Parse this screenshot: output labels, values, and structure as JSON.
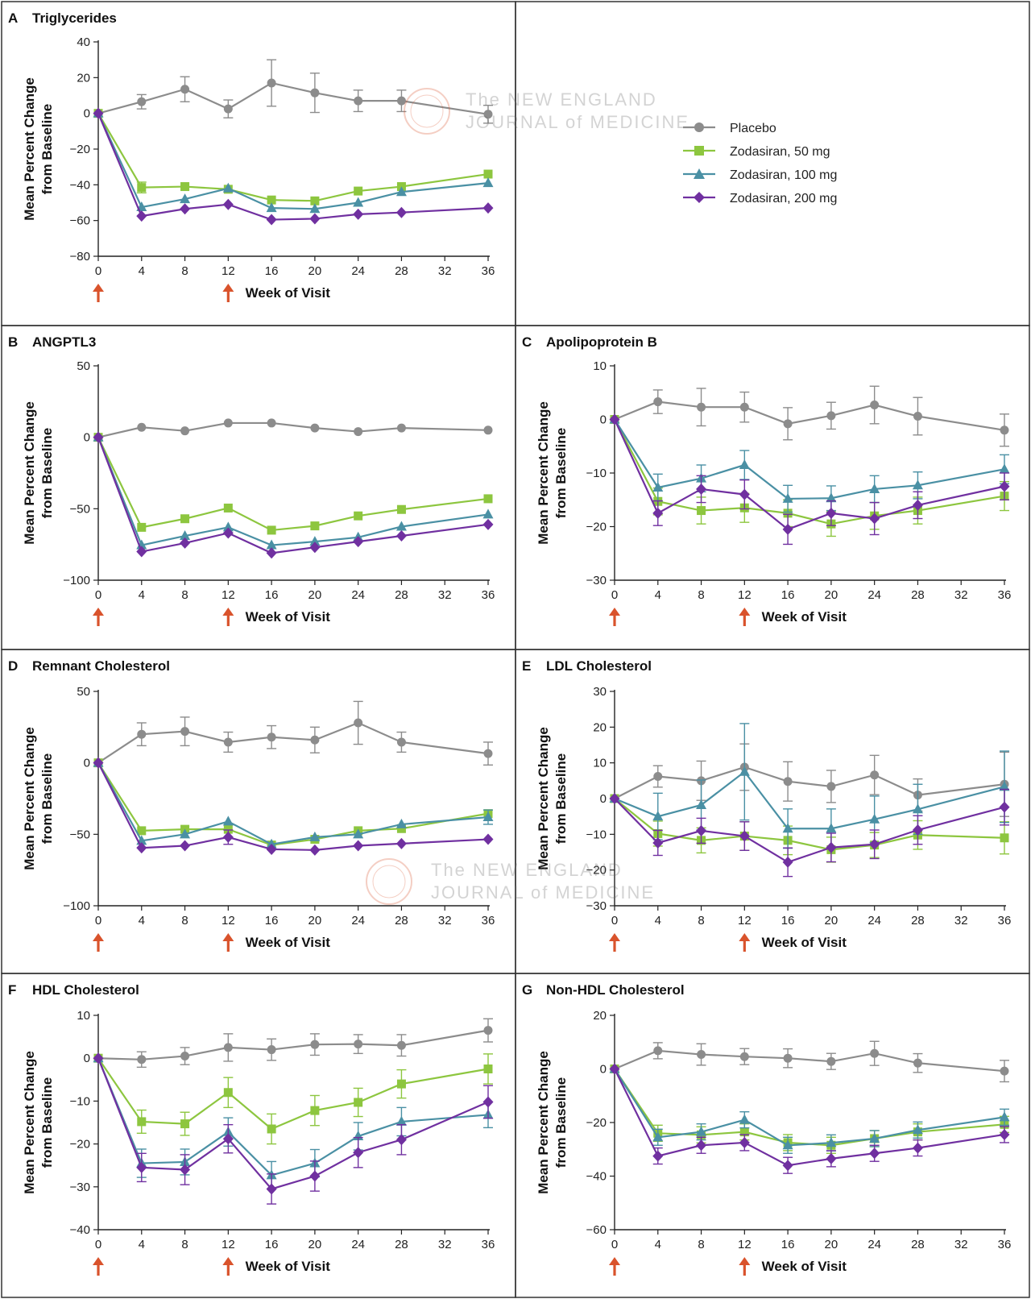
{
  "figure": {
    "x_axis_label": "Week of Visit",
    "y_axis_label_line1": "Mean Percent Change",
    "y_axis_label_line2": "from Baseline",
    "watermark": "The NEW ENGLAND JOURNAL of MEDICINE",
    "colors": {
      "placebo": "#8c8c8c",
      "z50": "#8dc63f",
      "z100": "#4a90a4",
      "z200": "#7030a0",
      "arrow": "#d9532c",
      "frame": "#333333"
    },
    "legend": {
      "placement": "top-right empty panel",
      "entries": [
        {
          "label": "Placebo",
          "marker": "circle",
          "color": "#8c8c8c"
        },
        {
          "label": "Zodasiran, 50 mg",
          "marker": "square",
          "color": "#8dc63f"
        },
        {
          "label": "Zodasiran, 100 mg",
          "marker": "triangle",
          "color": "#4a90a4"
        },
        {
          "label": "Zodasiran, 200 mg",
          "marker": "diamond",
          "color": "#7030a0"
        }
      ]
    },
    "dosing_arrows_at_weeks": [
      0,
      12
    ]
  },
  "chart_data": [
    {
      "letter": "A",
      "title": "Triglycerides",
      "type": "line",
      "x": [
        0,
        4,
        8,
        12,
        16,
        20,
        24,
        28,
        36
      ],
      "xticks": [
        0,
        4,
        8,
        12,
        16,
        20,
        24,
        28,
        32,
        36
      ],
      "ylim": [
        -80,
        40
      ],
      "yticks": [
        -80,
        -60,
        -40,
        -20,
        0,
        20,
        40
      ],
      "series": [
        {
          "name": "Placebo",
          "values": [
            0,
            6.5,
            13.5,
            2.5,
            17,
            11.5,
            7,
            7,
            -0.5
          ],
          "err": [
            0,
            4,
            7,
            5,
            13,
            11,
            6,
            6,
            5
          ]
        },
        {
          "name": "Zodasiran, 50 mg",
          "values": [
            0,
            -41.5,
            -41,
            -42.5,
            -48.5,
            -49,
            -43.5,
            -41,
            -34
          ],
          "err": [
            0,
            3,
            0,
            0,
            0,
            0,
            0,
            0,
            0
          ]
        },
        {
          "name": "Zodasiran, 100 mg",
          "values": [
            0,
            -52.5,
            -48,
            -42,
            -53,
            -53.5,
            -50,
            -44,
            -39
          ],
          "err": [
            0,
            0,
            0,
            0,
            0,
            0,
            0,
            0,
            0
          ]
        },
        {
          "name": "Zodasiran, 200 mg",
          "values": [
            0,
            -57.5,
            -53.5,
            -51,
            -59.5,
            -59,
            -56.5,
            -55.5,
            -53
          ],
          "err": [
            0,
            0,
            0,
            0,
            0,
            0,
            0,
            0,
            0
          ]
        }
      ]
    },
    {
      "letter": "B",
      "title": "ANGPTL3",
      "type": "line",
      "x": [
        0,
        4,
        8,
        12,
        16,
        20,
        24,
        28,
        36
      ],
      "xticks": [
        0,
        4,
        8,
        12,
        16,
        20,
        24,
        28,
        32,
        36
      ],
      "ylim": [
        -100,
        50
      ],
      "yticks": [
        -100,
        -50,
        0,
        50
      ],
      "series": [
        {
          "name": "Placebo",
          "values": [
            0,
            7,
            4.5,
            10,
            10,
            6.5,
            4,
            6.5,
            5
          ],
          "err": [
            0,
            0,
            0,
            0,
            0,
            0,
            0,
            0,
            0
          ]
        },
        {
          "name": "Zodasiran, 50 mg",
          "values": [
            0,
            -63,
            -57,
            -49.5,
            -65,
            -62,
            -55,
            -50.5,
            -43
          ],
          "err": [
            0,
            0,
            0,
            0,
            0,
            0,
            0,
            0,
            0
          ]
        },
        {
          "name": "Zodasiran, 100 mg",
          "values": [
            0,
            -75.5,
            -69,
            -63,
            -75.5,
            -73,
            -70,
            -62.5,
            -54
          ],
          "err": [
            0,
            0,
            0,
            0,
            0,
            0,
            0,
            0,
            0
          ]
        },
        {
          "name": "Zodasiran, 200 mg",
          "values": [
            0,
            -80,
            -74,
            -67,
            -81,
            -77,
            -73,
            -69,
            -61
          ],
          "err": [
            0,
            0,
            0,
            0,
            0,
            0,
            0,
            0,
            0
          ]
        }
      ]
    },
    {
      "letter": "C",
      "title": "Apolipoprotein B",
      "type": "line",
      "x": [
        0,
        4,
        8,
        12,
        16,
        20,
        24,
        28,
        36
      ],
      "xticks": [
        0,
        4,
        8,
        12,
        16,
        20,
        24,
        28,
        32,
        36
      ],
      "ylim": [
        -30,
        10
      ],
      "yticks": [
        -30,
        -20,
        -10,
        0,
        10
      ],
      "series": [
        {
          "name": "Placebo",
          "values": [
            0,
            3.3,
            2.3,
            2.3,
            -0.8,
            0.7,
            2.7,
            0.6,
            -2
          ],
          "err": [
            0,
            2.2,
            3.5,
            2.8,
            3,
            2.5,
            3.5,
            3.5,
            3
          ]
        },
        {
          "name": "Zodasiran, 50 mg",
          "values": [
            0,
            -15.3,
            -17,
            -16.5,
            -17.5,
            -19.5,
            -18,
            -17,
            -14.3
          ],
          "err": [
            0,
            2.5,
            2.5,
            2.7,
            2.5,
            2.3,
            2.5,
            2.5,
            2.7
          ]
        },
        {
          "name": "Zodasiran, 100 mg",
          "values": [
            0,
            -12.7,
            -11,
            -8.5,
            -14.8,
            -14.7,
            -13,
            -12.3,
            -9.3
          ],
          "err": [
            0,
            2.5,
            2.5,
            2.7,
            2.5,
            2.3,
            2.5,
            2.5,
            2.7
          ]
        },
        {
          "name": "Zodasiran, 200 mg",
          "values": [
            0,
            -17.5,
            -13,
            -14,
            -20.5,
            -17.5,
            -18.5,
            -16,
            -12.5
          ],
          "err": [
            0,
            2.3,
            2.5,
            2.7,
            2.8,
            2.3,
            3,
            2.5,
            2.5
          ]
        }
      ]
    },
    {
      "letter": "D",
      "title": "Remnant Cholesterol",
      "type": "line",
      "x": [
        0,
        4,
        8,
        12,
        16,
        20,
        24,
        28,
        36
      ],
      "xticks": [
        0,
        4,
        8,
        12,
        16,
        20,
        24,
        28,
        32,
        36
      ],
      "ylim": [
        -100,
        50
      ],
      "yticks": [
        -100,
        -50,
        0,
        50
      ],
      "series": [
        {
          "name": "Placebo",
          "values": [
            0,
            20,
            22,
            14.5,
            18,
            16,
            28,
            14.5,
            6.5
          ],
          "err": [
            0,
            8,
            10,
            7,
            8,
            9,
            15,
            7,
            8
          ]
        },
        {
          "name": "Zodasiran, 50 mg",
          "values": [
            0,
            -47.5,
            -46.5,
            -46.5,
            -57.5,
            -53.5,
            -47.5,
            -46,
            -35.5
          ],
          "err": [
            0,
            0,
            0,
            0,
            0,
            0,
            0,
            0,
            0
          ]
        },
        {
          "name": "Zodasiran, 100 mg",
          "values": [
            0,
            -54.5,
            -50,
            -41,
            -57,
            -52,
            -50,
            -43,
            -38
          ],
          "err": [
            0,
            0,
            0,
            0,
            0,
            0,
            0,
            0,
            5
          ]
        },
        {
          "name": "Zodasiran, 200 mg",
          "values": [
            0,
            -59.5,
            -58,
            -52,
            -60.5,
            -61,
            -58,
            -56.5,
            -53.5
          ],
          "err": [
            0,
            0,
            0,
            5,
            0,
            0,
            0,
            0,
            0
          ]
        }
      ]
    },
    {
      "letter": "E",
      "title": "LDL Cholesterol",
      "type": "line",
      "x": [
        0,
        4,
        8,
        12,
        16,
        20,
        24,
        28,
        36
      ],
      "xticks": [
        0,
        4,
        8,
        12,
        16,
        20,
        24,
        28,
        32,
        36
      ],
      "ylim": [
        -30,
        30
      ],
      "yticks": [
        -30,
        -20,
        -10,
        0,
        10,
        20,
        30
      ],
      "series": [
        {
          "name": "Placebo",
          "values": [
            0,
            6.2,
            5,
            8.8,
            4.8,
            3.4,
            6.6,
            1,
            4
          ],
          "err": [
            0,
            3,
            5.5,
            6.5,
            5.5,
            4.5,
            5.5,
            4.5,
            9
          ]
        },
        {
          "name": "Zodasiran, 50 mg",
          "values": [
            0,
            -9.8,
            -11.7,
            -10.5,
            -11.7,
            -14.3,
            -13,
            -10.2,
            -11
          ],
          "err": [
            0,
            3.5,
            3.5,
            4,
            4,
            3.5,
            3.5,
            4,
            4.5
          ]
        },
        {
          "name": "Zodasiran, 100 mg",
          "values": [
            0,
            -5,
            -1.8,
            7.5,
            -8.4,
            -8.4,
            -5.8,
            -3,
            3.3
          ],
          "err": [
            0,
            6.5,
            7,
            13.5,
            5.5,
            5.5,
            6.5,
            7,
            10
          ]
        },
        {
          "name": "Zodasiran, 200 mg",
          "values": [
            0,
            -12.4,
            -9,
            -10.5,
            -17.8,
            -13.7,
            -12.8,
            -8.8,
            -2.4
          ],
          "err": [
            0,
            3.5,
            3.5,
            4,
            4,
            4,
            4,
            4,
            5
          ]
        }
      ]
    },
    {
      "letter": "F",
      "title": "HDL Cholesterol",
      "type": "line",
      "x": [
        0,
        4,
        8,
        12,
        16,
        20,
        24,
        28,
        36
      ],
      "xticks": [
        0,
        4,
        8,
        12,
        16,
        20,
        24,
        28,
        32,
        36
      ],
      "ylim": [
        -40,
        10
      ],
      "yticks": [
        -40,
        -30,
        -20,
        -10,
        0,
        10
      ],
      "series": [
        {
          "name": "Placebo",
          "values": [
            0,
            -0.3,
            0.5,
            2.5,
            2,
            3.2,
            3.3,
            3,
            6.5
          ],
          "err": [
            0,
            1.8,
            2,
            3.2,
            2.5,
            2.5,
            2.2,
            2.5,
            2.7
          ]
        },
        {
          "name": "Zodasiran, 50 mg",
          "values": [
            0,
            -14.8,
            -15.3,
            -8,
            -16.5,
            -12.2,
            -10.3,
            -6,
            -2.5
          ],
          "err": [
            0,
            2.7,
            2.7,
            3.5,
            3.5,
            3.5,
            3.3,
            3.3,
            3.5
          ]
        },
        {
          "name": "Zodasiran, 100 mg",
          "values": [
            0,
            -24.5,
            -24.2,
            -17.2,
            -27.3,
            -24.5,
            -18.2,
            -14.8,
            -13.2
          ],
          "err": [
            0,
            3.3,
            3,
            3.3,
            3.2,
            3.2,
            3.2,
            3.3,
            3
          ]
        },
        {
          "name": "Zodasiran, 200 mg",
          "values": [
            0,
            -25.5,
            -26,
            -18.8,
            -30.5,
            -27.5,
            -22,
            -19,
            -10.2
          ],
          "err": [
            0,
            3.3,
            3.5,
            3.3,
            3.5,
            3.5,
            3.5,
            3.5,
            3.8
          ]
        }
      ]
    },
    {
      "letter": "G",
      "title": "Non-HDL Cholesterol",
      "type": "line",
      "x": [
        0,
        4,
        8,
        12,
        16,
        20,
        24,
        28,
        36
      ],
      "xticks": [
        0,
        4,
        8,
        12,
        16,
        20,
        24,
        28,
        32,
        36
      ],
      "ylim": [
        -60,
        20
      ],
      "yticks": [
        -60,
        -40,
        -20,
        0,
        20
      ],
      "series": [
        {
          "name": "Placebo",
          "values": [
            0,
            6.8,
            5.4,
            4.6,
            4,
            2.8,
            5.8,
            2.2,
            -0.8
          ],
          "err": [
            0,
            3,
            4,
            3,
            3.5,
            3,
            4.5,
            3.5,
            4
          ]
        },
        {
          "name": "Zodasiran, 50 mg",
          "values": [
            0,
            -24,
            -24.6,
            -23.5,
            -27.5,
            -28.5,
            -26,
            -23.5,
            -20.7
          ],
          "err": [
            0,
            3,
            3,
            3,
            3,
            3,
            3,
            3,
            3
          ]
        },
        {
          "name": "Zodasiran, 100 mg",
          "values": [
            0,
            -25.5,
            -23.5,
            -19,
            -28.5,
            -27.6,
            -26,
            -22.8,
            -18
          ],
          "err": [
            0,
            3,
            3,
            3,
            3,
            3,
            3,
            3,
            3
          ]
        },
        {
          "name": "Zodasiran, 200 mg",
          "values": [
            0,
            -32.5,
            -28.5,
            -27.5,
            -36,
            -33.5,
            -31.5,
            -29.5,
            -24.5
          ],
          "err": [
            0,
            3,
            3,
            3,
            3,
            3,
            3,
            3,
            3
          ]
        }
      ]
    }
  ]
}
